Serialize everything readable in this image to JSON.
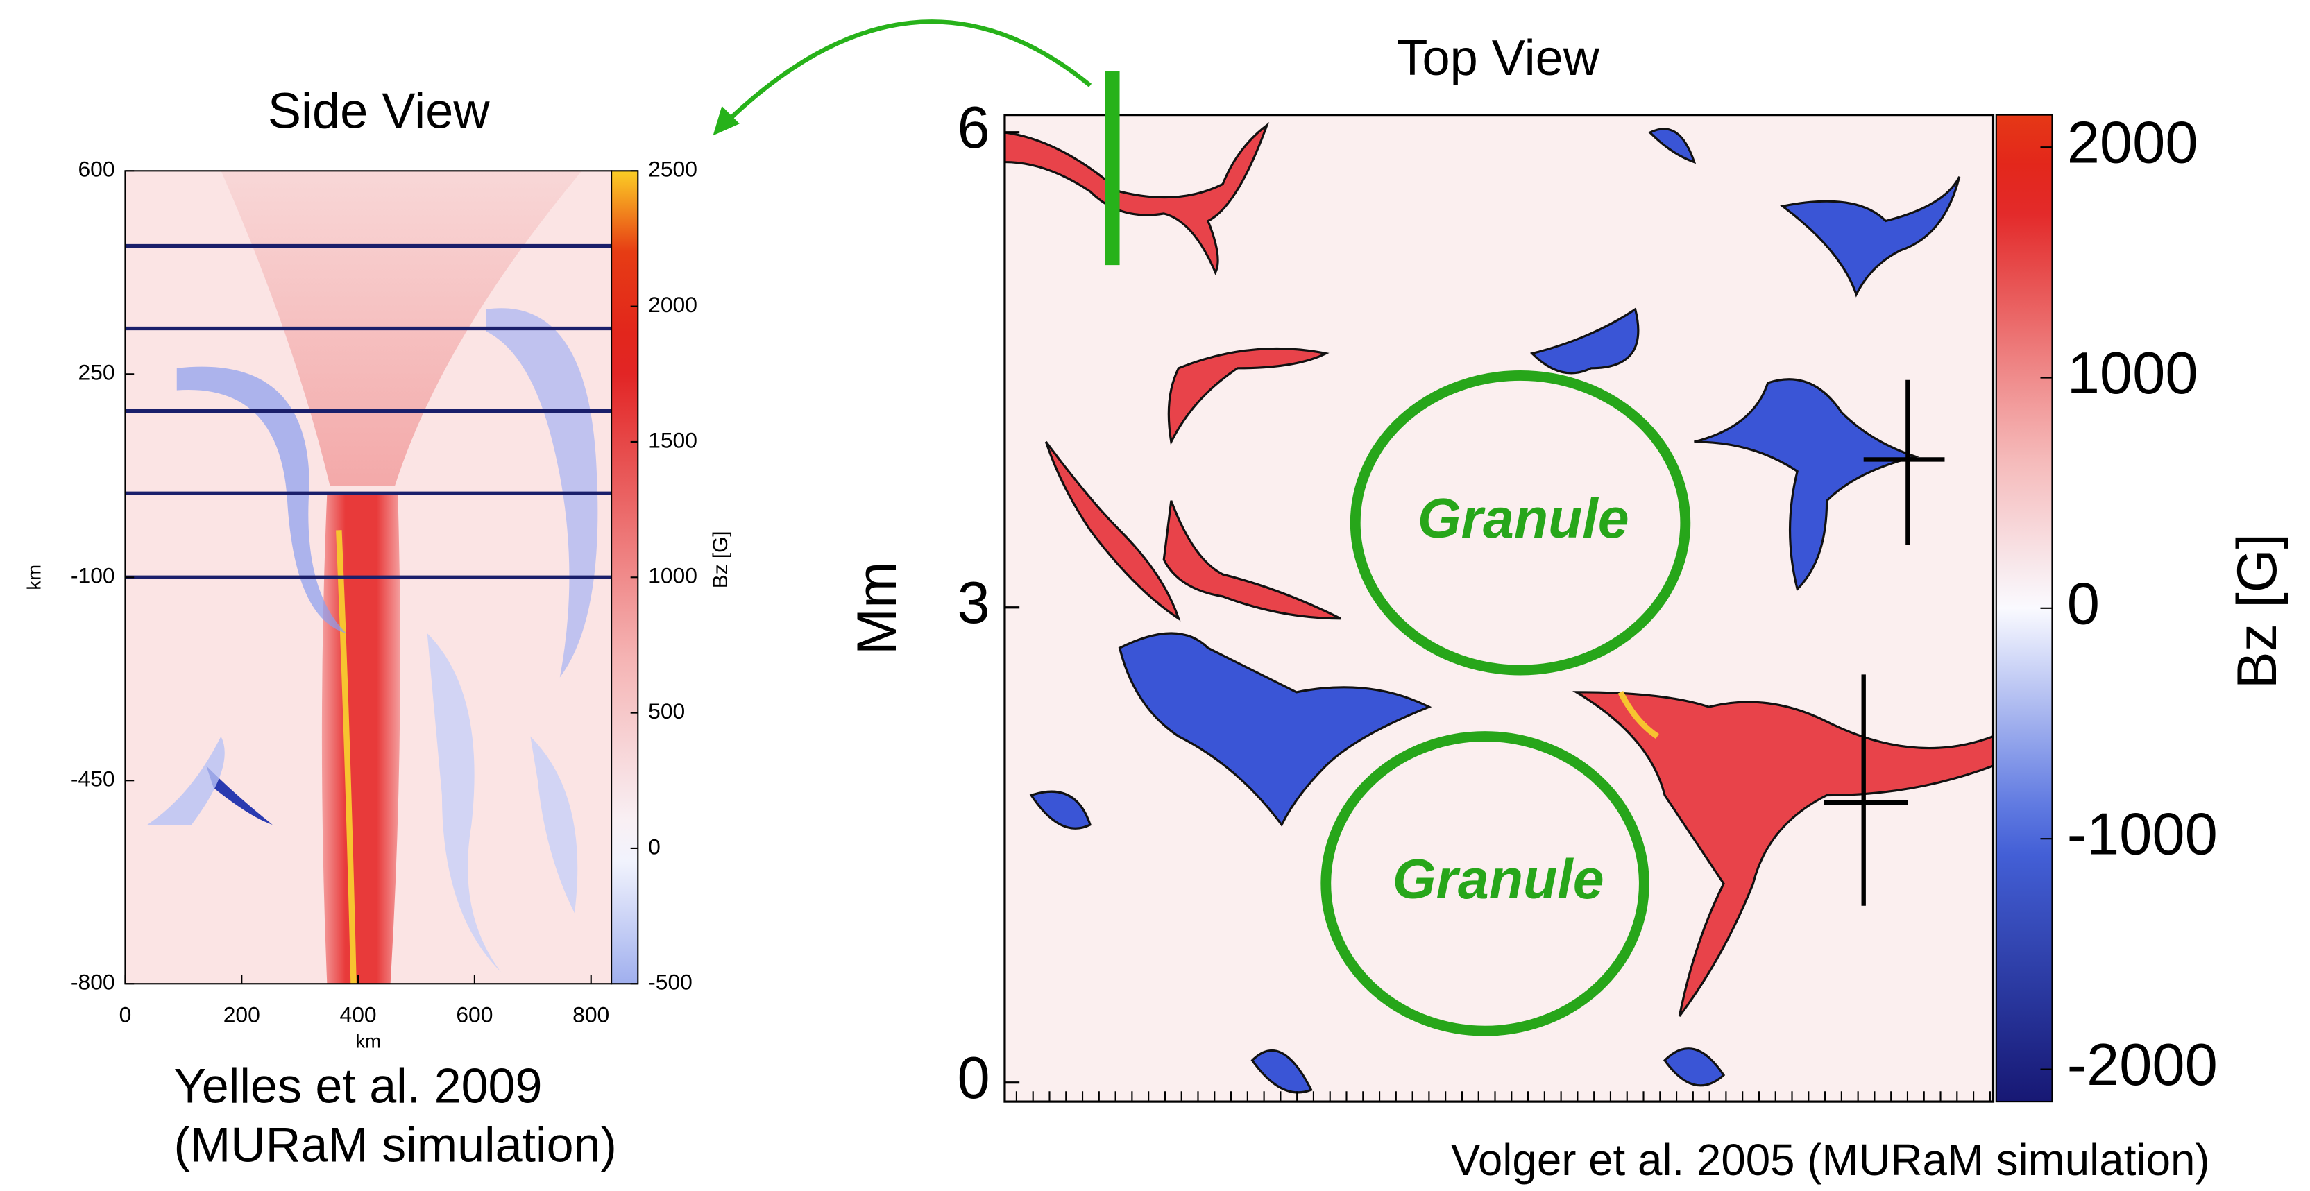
{
  "side_view": {
    "title": "Side View",
    "x_label": "km",
    "y_label": "km",
    "xlim": [
      0,
      835
    ],
    "xticks": [
      0,
      200,
      400,
      600,
      800
    ],
    "ylim": [
      -800,
      600
    ],
    "yticks": [
      600,
      250,
      -100,
      -450,
      -800
    ],
    "colorbar": {
      "label": "Bz [G]",
      "lim": [
        -500,
        2500
      ],
      "ticks": [
        2500,
        2000,
        1500,
        1000,
        500,
        0,
        -500
      ]
    },
    "credit": [
      "Yelles et al. 2009",
      "(MURaM simulation)"
    ]
  },
  "top_view": {
    "title": "Top View",
    "y_label": "Mm",
    "ylim": [
      -0.12,
      6.11
    ],
    "yticks": [
      6,
      3,
      0
    ],
    "colorbar": {
      "label": "Bz [G]",
      "lim": [
        -2140,
        2140
      ],
      "ticks": [
        2000,
        1000,
        0,
        -1000,
        -2000
      ]
    },
    "annotations": [
      "Granule",
      "Granule"
    ],
    "credit": "Volger et al. 2005 (MURaM simulation)"
  }
}
